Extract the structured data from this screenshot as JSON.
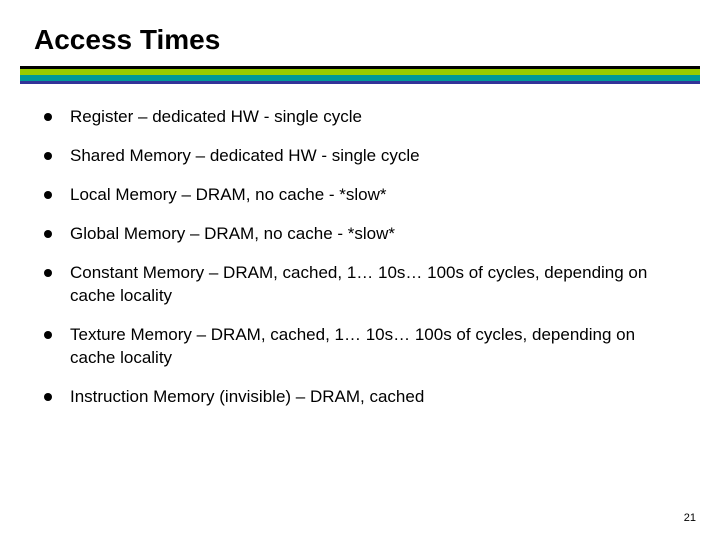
{
  "slide": {
    "title": "Access Times",
    "title_fontsize": 28,
    "title_fontweight": "bold",
    "title_color": "#000000",
    "background_color": "#ffffff",
    "rule_colors": {
      "black": "#000000",
      "lime": "#99cc00",
      "teal": "#009999",
      "blue": "#333399"
    },
    "bullets": [
      "Register – dedicated HW - single cycle",
      "Shared Memory – dedicated HW - single cycle",
      "Local Memory – DRAM, no cache - *slow*",
      "Global Memory – DRAM, no cache - *slow*",
      "Constant Memory – DRAM, cached, 1… 10s… 100s of cycles, depending on cache locality",
      "Texture Memory – DRAM, cached, 1… 10s… 100s of cycles, depending on cache locality",
      "Instruction Memory (invisible) – DRAM, cached"
    ],
    "bullet_fontsize": 17,
    "bullet_color": "#000000",
    "bullet_marker_color": "#000000",
    "page_number": "21",
    "page_number_fontsize": 11
  }
}
